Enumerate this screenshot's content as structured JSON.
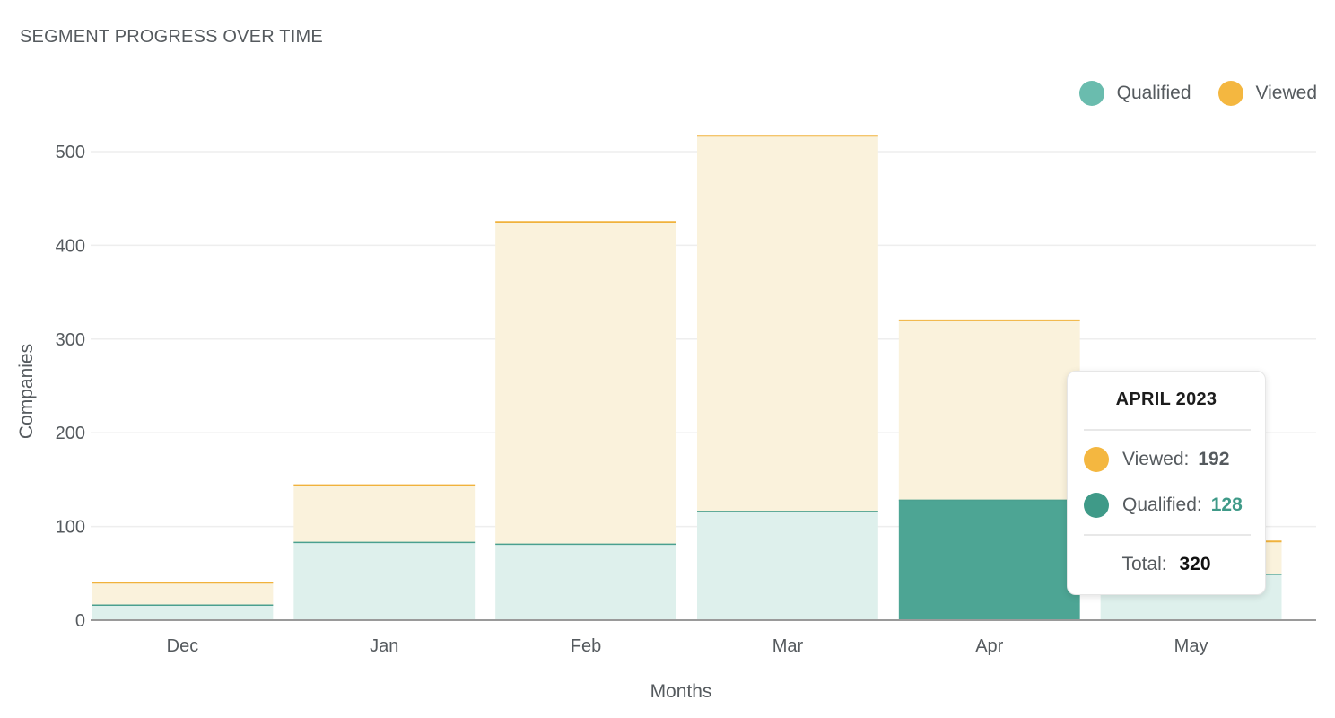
{
  "title": "SEGMENT PROGRESS OVER TIME",
  "legend": [
    {
      "label": "Qualified",
      "color": "#6abcae"
    },
    {
      "label": "Viewed",
      "color": "#f4b740"
    }
  ],
  "colors": {
    "qualified_light": "#def0ec",
    "qualified_dark": "#4da594",
    "qualified_line": "#4aa08f",
    "viewed_light": "#faf2dc",
    "viewed_line": "#f0b23c",
    "grid": "#eeeeee",
    "axis": "#9a9a9a"
  },
  "chart_data": {
    "type": "bar",
    "stacked": true,
    "categories": [
      "Dec",
      "Jan",
      "Feb",
      "Mar",
      "Apr",
      "May"
    ],
    "series": [
      {
        "name": "Qualified",
        "values": [
          16,
          83,
          81,
          116,
          128,
          49
        ]
      },
      {
        "name": "Viewed",
        "values": [
          24,
          61,
          344,
          401,
          192,
          35
        ]
      }
    ],
    "totals": [
      40,
      144,
      425,
      517,
      320,
      84
    ],
    "highlighted_index": 4,
    "xlabel": "Months",
    "ylabel": "Companies",
    "ylim": [
      0,
      550
    ],
    "yticks": [
      0,
      100,
      200,
      300,
      400,
      500
    ],
    "grid": true,
    "legend_position": "top-right"
  },
  "tooltip": {
    "title": "APRIL 2023",
    "viewed_label": "Viewed:",
    "viewed_value": "192",
    "qualified_label": "Qualified:",
    "qualified_value": "128",
    "total_label": "Total:",
    "total_value": "320"
  }
}
